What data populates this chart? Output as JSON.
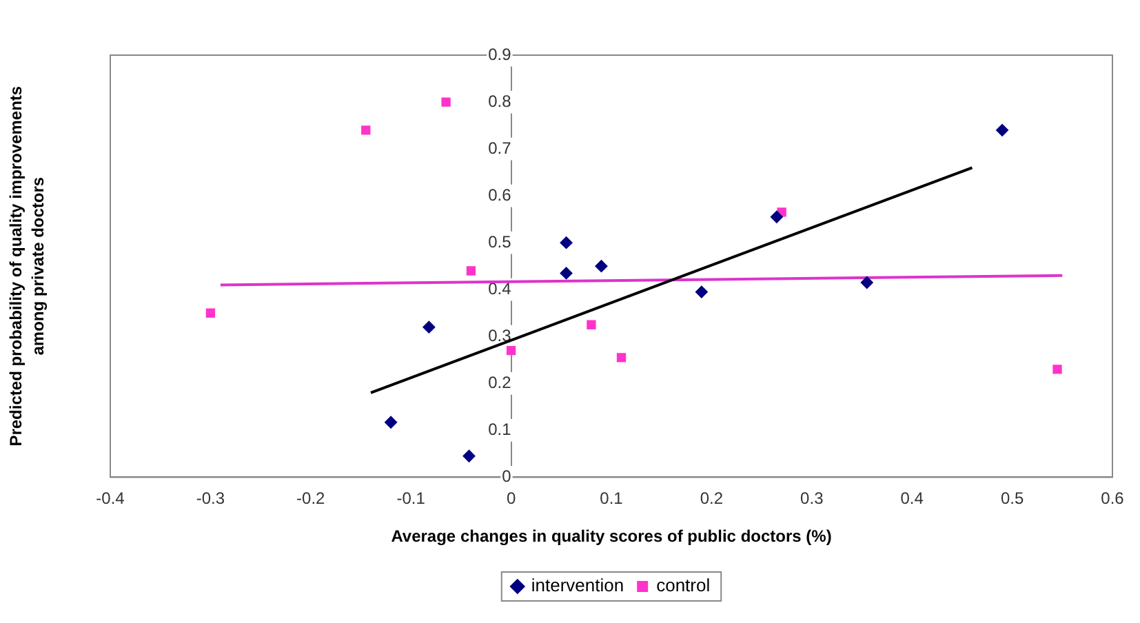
{
  "chart_data": {
    "type": "scatter",
    "xlabel": "Average changes in quality scores of public doctors (%)",
    "ylabel": "Predicted probability of quality improvements among private doctors",
    "xlim": [
      -0.4,
      0.6
    ],
    "xticks": [
      -0.4,
      -0.3,
      -0.2,
      -0.1,
      0,
      0.1,
      0.2,
      0.3,
      0.4,
      0.5,
      0.6
    ],
    "ylim": [
      0,
      0.9
    ],
    "yticks": [
      0,
      0.1,
      0.2,
      0.3,
      0.4,
      0.5,
      0.6,
      0.7,
      0.8,
      0.9
    ],
    "grid": false,
    "legend": "bottom",
    "series": [
      {
        "name": "intervention",
        "color": "#000080",
        "marker": "diamond",
        "x": [
          -0.12,
          -0.082,
          -0.042,
          0.055,
          0.055,
          0.09,
          0.19,
          0.265,
          0.355,
          0.49
        ],
        "values": [
          0.117,
          0.32,
          0.045,
          0.5,
          0.435,
          0.45,
          0.395,
          0.555,
          0.415,
          0.74
        ]
      },
      {
        "name": "control",
        "color": "#ff33cc",
        "marker": "square",
        "x": [
          -0.3,
          -0.145,
          -0.065,
          -0.04,
          0,
          0.08,
          0.11,
          0.27,
          0.545
        ],
        "values": [
          0.35,
          0.74,
          0.8,
          0.44,
          0.27,
          0.325,
          0.255,
          0.565,
          0.23
        ]
      },
      {
        "type": "line",
        "color": "#000000",
        "marker": "none",
        "x": [
          -0.14,
          0.46
        ],
        "values": [
          0.18,
          0.66
        ]
      },
      {
        "type": "line",
        "color": "#dd33cc",
        "marker": "none",
        "x": [
          -0.29,
          0.55
        ],
        "values": [
          0.41,
          0.43
        ]
      }
    ]
  }
}
